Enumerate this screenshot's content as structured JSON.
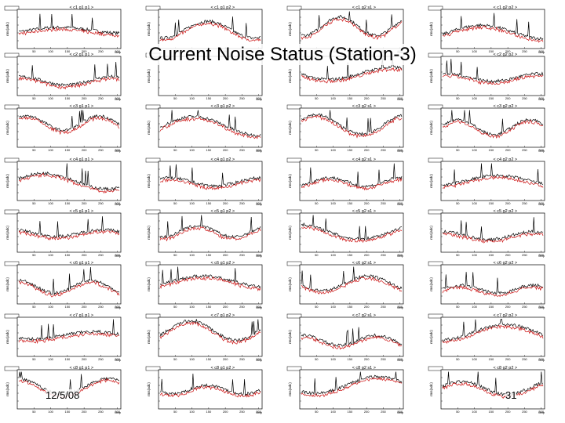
{
  "slide": {
    "title": "Current Noise Status (Station-3)",
    "date": "12/5/08",
    "page_number": "31"
  },
  "colors": {
    "series_black": "#000000",
    "series_red": "#cc1111",
    "frame": "#000000"
  },
  "chart_data": {
    "type": "line",
    "description_hidden": false,
    "panel_labels": [
      "< c1 g1 p1 >",
      "< c1 g1 p2 >",
      "< c1 g2 s1 >",
      "< c1 g2 p2 >",
      "< c2 g1 p1 >",
      "",
      "< c2 g2 s1 >",
      "< c2 g2 p2 >",
      "< c3 g1 p1 >",
      "< c3 g1 p2 >",
      "< c3 g2 s1 >",
      "< c3 g2 p2 >",
      "< c4 g1 p1 >",
      "< c4 g1 p2 >",
      "< c4 g2 s1 >",
      "< c4 g2 p2 >",
      "< c5 g1 p1 >",
      "< c5 g1 p2 >",
      "< c5 g2 s1 >",
      "< c5 g2 p2 >",
      "< c6 g1 p1 >",
      "< c6 g1 p2 >",
      "< c6 g2 s1 >",
      "< c6 g2 p2 >",
      "< c7 g1 p1 >",
      "< c7 g1 p2 >",
      "< c7 g2 s1 >",
      "< c7 g2 p2 >",
      "< c8 g1 p1 >",
      "< c8 g1 p2 >",
      "< c8 g2 s1 >",
      "< c8 g2 p2 >"
    ],
    "x_ticks": [
      "50",
      "100",
      "150",
      "200",
      "250",
      "300"
    ],
    "xlabel": "Strip",
    "ylabel": "rms(adc)",
    "series_names": [
      "black",
      "red"
    ]
  }
}
